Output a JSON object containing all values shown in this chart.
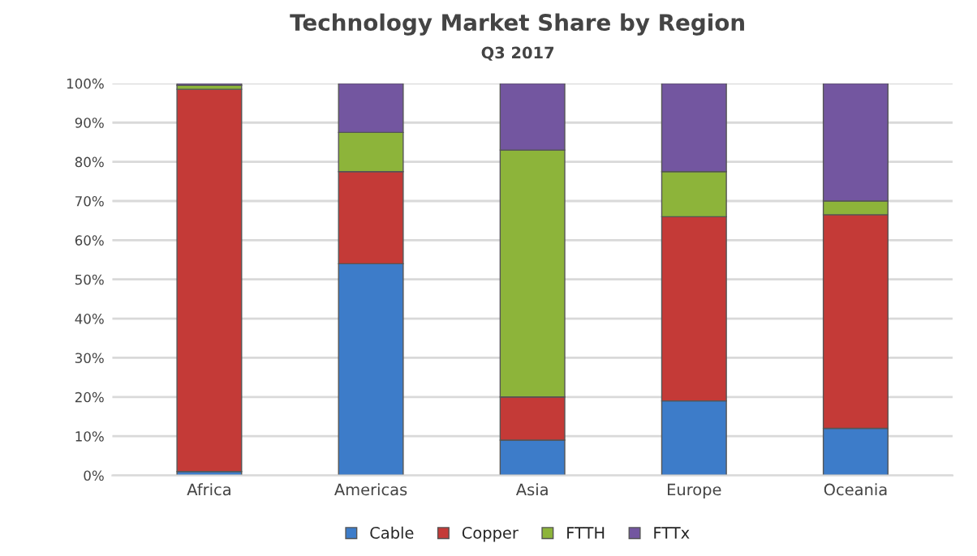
{
  "chart_data": {
    "type": "bar",
    "title": "Technology Market Share by Region",
    "subtitle": "Q3 2017",
    "categories": [
      "Africa",
      "Americas",
      "Asia",
      "Europe",
      "Oceania"
    ],
    "stacked": true,
    "series": [
      {
        "name": "Cable",
        "color": "#3d7cc9",
        "values": [
          1,
          54,
          9,
          19,
          12
        ]
      },
      {
        "name": "Copper",
        "color": "#c43a37",
        "values": [
          97.5,
          23.5,
          11,
          47,
          54.5
        ]
      },
      {
        "name": "FTTH",
        "color": "#8db43a",
        "values": [
          1,
          10,
          63,
          11.5,
          3.5
        ]
      },
      {
        "name": "FTTx",
        "color": "#7356a0",
        "values": [
          0.5,
          12.5,
          17,
          22.5,
          30
        ]
      }
    ],
    "ylim": [
      0,
      100
    ],
    "yticks": [
      {
        "value": 0,
        "label": "0%"
      },
      {
        "value": 10,
        "label": "10%"
      },
      {
        "value": 20,
        "label": "20%"
      },
      {
        "value": 30,
        "label": "30%"
      },
      {
        "value": 40,
        "label": "40%"
      },
      {
        "value": 50,
        "label": "50%"
      },
      {
        "value": 60,
        "label": "60%"
      },
      {
        "value": 70,
        "label": "70%"
      },
      {
        "value": 80,
        "label": "80%"
      },
      {
        "value": 90,
        "label": "90%"
      },
      {
        "value": 100,
        "label": "100%"
      }
    ],
    "grid": "y",
    "legend": "bottom"
  }
}
